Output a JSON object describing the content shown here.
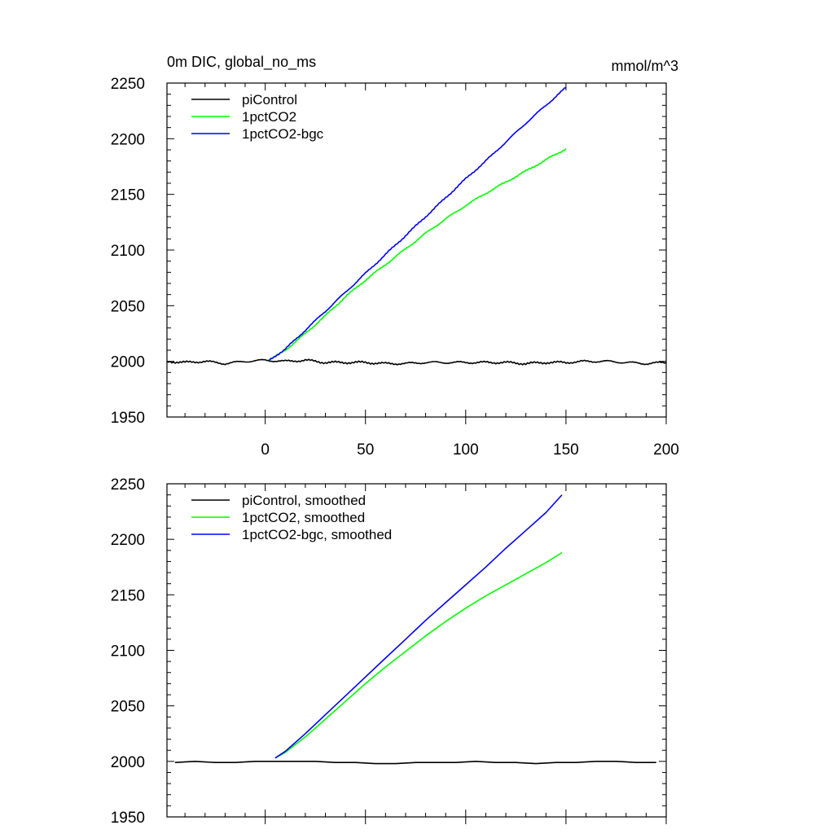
{
  "chart_data": [
    {
      "type": "line",
      "title": "0m DIC, global_no_ms",
      "units": "mmol/m^3",
      "xlabel": "",
      "ylabel": "",
      "xlim": [
        -49,
        200
      ],
      "ylim": [
        1950,
        2250
      ],
      "xticks": [
        0,
        50,
        100,
        150,
        200
      ],
      "yticks": [
        1950,
        2000,
        2050,
        2100,
        2150,
        2200,
        2250
      ],
      "show_xtick_labels": true,
      "legend": "top-left",
      "grid": false,
      "series": [
        {
          "name": "piControl",
          "color": "#000000",
          "x": [
            -49,
            -40,
            -30,
            -20,
            -10,
            0,
            10,
            20,
            30,
            40,
            50,
            60,
            70,
            80,
            90,
            100,
            110,
            120,
            130,
            140,
            150,
            160,
            170,
            180,
            190,
            200
          ],
          "y": [
            2000,
            1999,
            2000,
            1998,
            2000,
            2001,
            2000,
            2001,
            1999,
            1999,
            1999,
            1998,
            1998,
            1999,
            1999,
            1999,
            1999,
            1999,
            1998,
            1999,
            1999,
            2000,
            2000,
            1999,
            1998,
            1999
          ],
          "jitter": 1.3
        },
        {
          "name": "1pctCO2",
          "color": "#00ff00",
          "x": [
            2,
            10,
            20,
            30,
            40,
            50,
            60,
            70,
            80,
            90,
            100,
            110,
            120,
            130,
            140,
            150
          ],
          "y": [
            2001,
            2010,
            2025,
            2041,
            2058,
            2073,
            2087,
            2101,
            2115,
            2128,
            2140,
            2151,
            2161,
            2171,
            2181,
            2191
          ],
          "jitter": 0.9
        },
        {
          "name": "1pctCO2-bgc",
          "color": "#0000ff",
          "x": [
            2,
            10,
            20,
            30,
            40,
            50,
            60,
            70,
            80,
            90,
            100,
            110,
            120,
            130,
            140,
            150
          ],
          "y": [
            2001,
            2011,
            2028,
            2045,
            2062,
            2079,
            2096,
            2113,
            2130,
            2147,
            2164,
            2180,
            2197,
            2214,
            2230,
            2246
          ],
          "jitter": 0.9
        }
      ]
    },
    {
      "type": "line",
      "title": "",
      "units": "",
      "xlabel": "",
      "ylabel": "",
      "xlim": [
        -49,
        200
      ],
      "ylim": [
        1950,
        2250
      ],
      "xticks": [
        0,
        50,
        100,
        150,
        200
      ],
      "yticks": [
        1950,
        2000,
        2050,
        2100,
        2150,
        2200,
        2250
      ],
      "show_xtick_labels": false,
      "legend": "top-left",
      "grid": false,
      "series": [
        {
          "name": "piControl, smoothed",
          "color": "#000000",
          "x": [
            -45,
            -35,
            -25,
            -15,
            -5,
            5,
            15,
            25,
            35,
            45,
            55,
            65,
            75,
            85,
            95,
            105,
            115,
            125,
            135,
            145,
            155,
            165,
            175,
            185,
            195
          ],
          "y": [
            1999,
            2000,
            1999,
            1999,
            2000,
            2000,
            2000,
            2000,
            1999,
            1999,
            1998,
            1998,
            1999,
            1999,
            1999,
            2000,
            1999,
            1999,
            1998,
            1999,
            1999,
            2000,
            2000,
            1999,
            1999
          ],
          "jitter": 0
        },
        {
          "name": "1pctCO2, smoothed",
          "color": "#00ff00",
          "x": [
            5,
            10,
            20,
            30,
            40,
            50,
            60,
            70,
            80,
            90,
            100,
            110,
            120,
            130,
            140,
            148
          ],
          "y": [
            2003,
            2008,
            2022,
            2038,
            2054,
            2070,
            2085,
            2099,
            2113,
            2126,
            2138,
            2149,
            2159,
            2169,
            2179,
            2188
          ],
          "jitter": 0
        },
        {
          "name": "1pctCO2-bgc, smoothed",
          "color": "#0000ff",
          "x": [
            5,
            10,
            20,
            30,
            40,
            50,
            60,
            70,
            80,
            90,
            100,
            110,
            120,
            130,
            140,
            148
          ],
          "y": [
            2003,
            2009,
            2025,
            2042,
            2059,
            2076,
            2093,
            2110,
            2127,
            2143,
            2159,
            2175,
            2192,
            2208,
            2224,
            2240
          ],
          "jitter": 0
        }
      ]
    }
  ]
}
